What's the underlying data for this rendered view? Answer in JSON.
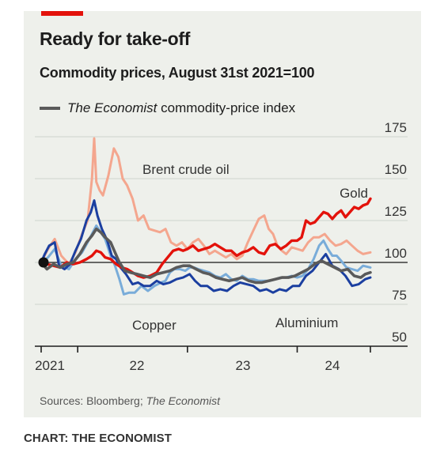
{
  "chart_data": {
    "type": "line",
    "title": "Ready for take-off",
    "subtitle": "Commodity prices, August 31st 2021=100",
    "source_prefix": "Sources: Bloomberg; ",
    "source_italic": "The Economist",
    "credit": "CHART: THE ECONOMIST",
    "legend_italic": "The Economist",
    "legend_rest": " commodity-price index",
    "xlim": [
      2021.667,
      2024.667
    ],
    "ylim": [
      50,
      175
    ],
    "y_ticks": [
      50,
      75,
      100,
      125,
      150,
      175
    ],
    "x_ticks": [
      2021,
      2022,
      2023,
      2024
    ],
    "x_tick_labels": [
      "2021",
      "22",
      "23",
      "24"
    ],
    "grid": true,
    "base_value": 100,
    "series": [
      {
        "name": "Brent crude oil",
        "color": "#f4a68e",
        "width": 3,
        "points": [
          [
            2021.667,
            100
          ],
          [
            2021.73,
            108
          ],
          [
            2021.79,
            114
          ],
          [
            2021.85,
            104
          ],
          [
            2021.92,
            99
          ],
          [
            2021.98,
            106
          ],
          [
            2022.04,
            117
          ],
          [
            2022.09,
            125
          ],
          [
            2022.13,
            150
          ],
          [
            2022.15,
            174
          ],
          [
            2022.17,
            148
          ],
          [
            2022.2,
            143
          ],
          [
            2022.23,
            140
          ],
          [
            2022.28,
            152
          ],
          [
            2022.33,
            168
          ],
          [
            2022.37,
            163
          ],
          [
            2022.41,
            150
          ],
          [
            2022.45,
            146
          ],
          [
            2022.5,
            138
          ],
          [
            2022.55,
            125
          ],
          [
            2022.6,
            128
          ],
          [
            2022.65,
            120
          ],
          [
            2022.7,
            119
          ],
          [
            2022.75,
            118
          ],
          [
            2022.8,
            120
          ],
          [
            2022.85,
            112
          ],
          [
            2022.9,
            110
          ],
          [
            2022.95,
            112
          ],
          [
            2023.0,
            108
          ],
          [
            2023.05,
            112
          ],
          [
            2023.1,
            114
          ],
          [
            2023.15,
            110
          ],
          [
            2023.2,
            105
          ],
          [
            2023.25,
            107
          ],
          [
            2023.3,
            105
          ],
          [
            2023.35,
            103
          ],
          [
            2023.4,
            105
          ],
          [
            2023.45,
            102
          ],
          [
            2023.5,
            104
          ],
          [
            2023.55,
            112
          ],
          [
            2023.6,
            119
          ],
          [
            2023.65,
            126
          ],
          [
            2023.7,
            128
          ],
          [
            2023.74,
            120
          ],
          [
            2023.78,
            117
          ],
          [
            2023.82,
            110
          ],
          [
            2023.86,
            107
          ],
          [
            2023.9,
            105
          ],
          [
            2023.95,
            109
          ],
          [
            2024.0,
            108
          ],
          [
            2024.05,
            107
          ],
          [
            2024.1,
            112
          ],
          [
            2024.15,
            115
          ],
          [
            2024.2,
            115
          ],
          [
            2024.25,
            117
          ],
          [
            2024.3,
            113
          ],
          [
            2024.35,
            110
          ],
          [
            2024.4,
            111
          ],
          [
            2024.45,
            113
          ],
          [
            2024.5,
            110
          ],
          [
            2024.55,
            107
          ],
          [
            2024.6,
            105
          ],
          [
            2024.667,
            106
          ]
        ]
      },
      {
        "name": "Copper",
        "color": "#79acd9",
        "width": 3,
        "points": [
          [
            2021.667,
            100
          ],
          [
            2021.73,
            103
          ],
          [
            2021.79,
            108
          ],
          [
            2021.85,
            98
          ],
          [
            2021.92,
            96
          ],
          [
            2021.98,
            102
          ],
          [
            2022.04,
            106
          ],
          [
            2022.09,
            112
          ],
          [
            2022.13,
            117
          ],
          [
            2022.17,
            122
          ],
          [
            2022.21,
            118
          ],
          [
            2022.25,
            114
          ],
          [
            2022.3,
            104
          ],
          [
            2022.34,
            98
          ],
          [
            2022.38,
            90
          ],
          [
            2022.42,
            81
          ],
          [
            2022.47,
            82
          ],
          [
            2022.52,
            82
          ],
          [
            2022.58,
            86
          ],
          [
            2022.64,
            83
          ],
          [
            2022.7,
            86
          ],
          [
            2022.76,
            88
          ],
          [
            2022.8,
            89
          ],
          [
            2022.84,
            94
          ],
          [
            2022.88,
            96
          ],
          [
            2022.93,
            96
          ],
          [
            2022.98,
            95
          ],
          [
            2023.02,
            97
          ],
          [
            2023.06,
            97
          ],
          [
            2023.1,
            96
          ],
          [
            2023.15,
            95
          ],
          [
            2023.2,
            94
          ],
          [
            2023.25,
            92
          ],
          [
            2023.3,
            91
          ],
          [
            2023.35,
            93
          ],
          [
            2023.4,
            90
          ],
          [
            2023.45,
            89
          ],
          [
            2023.5,
            92
          ],
          [
            2023.55,
            90
          ],
          [
            2023.6,
            90
          ],
          [
            2023.65,
            89
          ],
          [
            2023.7,
            89
          ],
          [
            2023.75,
            89
          ],
          [
            2023.8,
            90
          ],
          [
            2023.85,
            91
          ],
          [
            2023.9,
            91
          ],
          [
            2023.95,
            92
          ],
          [
            2024.0,
            91
          ],
          [
            2024.05,
            92
          ],
          [
            2024.1,
            96
          ],
          [
            2024.15,
            102
          ],
          [
            2024.2,
            110
          ],
          [
            2024.24,
            113
          ],
          [
            2024.28,
            108
          ],
          [
            2024.32,
            104
          ],
          [
            2024.36,
            104
          ],
          [
            2024.4,
            101
          ],
          [
            2024.45,
            97
          ],
          [
            2024.5,
            96
          ],
          [
            2024.55,
            95
          ],
          [
            2024.6,
            98
          ],
          [
            2024.667,
            97
          ]
        ]
      },
      {
        "name": "Aluminium",
        "color": "#1b3fa0",
        "width": 3,
        "points": [
          [
            2021.667,
            100
          ],
          [
            2021.7,
            105
          ],
          [
            2021.74,
            110
          ],
          [
            2021.79,
            112
          ],
          [
            2021.83,
            98
          ],
          [
            2021.88,
            96
          ],
          [
            2021.93,
            99
          ],
          [
            2021.98,
            107
          ],
          [
            2022.03,
            114
          ],
          [
            2022.08,
            125
          ],
          [
            2022.12,
            130
          ],
          [
            2022.15,
            137
          ],
          [
            2022.18,
            128
          ],
          [
            2022.22,
            120
          ],
          [
            2022.27,
            113
          ],
          [
            2022.31,
            104
          ],
          [
            2022.35,
            102
          ],
          [
            2022.39,
            97
          ],
          [
            2022.44,
            93
          ],
          [
            2022.5,
            87
          ],
          [
            2022.55,
            88
          ],
          [
            2022.6,
            86
          ],
          [
            2022.66,
            86
          ],
          [
            2022.72,
            89
          ],
          [
            2022.78,
            87
          ],
          [
            2022.84,
            88
          ],
          [
            2022.9,
            90
          ],
          [
            2022.96,
            91
          ],
          [
            2023.02,
            93
          ],
          [
            2023.07,
            89
          ],
          [
            2023.12,
            86
          ],
          [
            2023.18,
            86
          ],
          [
            2023.24,
            83
          ],
          [
            2023.3,
            84
          ],
          [
            2023.36,
            83
          ],
          [
            2023.42,
            86
          ],
          [
            2023.48,
            88
          ],
          [
            2023.54,
            87
          ],
          [
            2023.6,
            86
          ],
          [
            2023.66,
            83
          ],
          [
            2023.72,
            84
          ],
          [
            2023.78,
            82
          ],
          [
            2023.84,
            84
          ],
          [
            2023.9,
            83
          ],
          [
            2023.96,
            86
          ],
          [
            2024.02,
            86
          ],
          [
            2024.08,
            92
          ],
          [
            2024.14,
            95
          ],
          [
            2024.2,
            100
          ],
          [
            2024.26,
            105
          ],
          [
            2024.32,
            98
          ],
          [
            2024.38,
            96
          ],
          [
            2024.44,
            92
          ],
          [
            2024.5,
            86
          ],
          [
            2024.56,
            87
          ],
          [
            2024.62,
            90
          ],
          [
            2024.667,
            91
          ]
        ]
      },
      {
        "name": "Gold",
        "color": "#e3120b",
        "width": 3.4,
        "points": [
          [
            2021.667,
            100
          ],
          [
            2021.72,
            99
          ],
          [
            2021.78,
            98
          ],
          [
            2021.84,
            97
          ],
          [
            2021.9,
            100
          ],
          [
            2021.96,
            99
          ],
          [
            2022.02,
            100
          ],
          [
            2022.08,
            102
          ],
          [
            2022.13,
            104
          ],
          [
            2022.17,
            107
          ],
          [
            2022.21,
            106
          ],
          [
            2022.25,
            103
          ],
          [
            2022.3,
            102
          ],
          [
            2022.35,
            99
          ],
          [
            2022.4,
            97
          ],
          [
            2022.45,
            96
          ],
          [
            2022.5,
            94
          ],
          [
            2022.55,
            92
          ],
          [
            2022.6,
            91
          ],
          [
            2022.66,
            92
          ],
          [
            2022.72,
            94
          ],
          [
            2022.77,
            99
          ],
          [
            2022.82,
            103
          ],
          [
            2022.87,
            107
          ],
          [
            2022.92,
            108
          ],
          [
            2022.96,
            107
          ],
          [
            2023.0,
            108
          ],
          [
            2023.05,
            110
          ],
          [
            2023.1,
            107
          ],
          [
            2023.15,
            108
          ],
          [
            2023.2,
            109
          ],
          [
            2023.25,
            111
          ],
          [
            2023.3,
            109
          ],
          [
            2023.35,
            107
          ],
          [
            2023.4,
            107
          ],
          [
            2023.45,
            104
          ],
          [
            2023.5,
            106
          ],
          [
            2023.55,
            107
          ],
          [
            2023.6,
            109
          ],
          [
            2023.65,
            106
          ],
          [
            2023.7,
            105
          ],
          [
            2023.75,
            110
          ],
          [
            2023.8,
            111
          ],
          [
            2023.85,
            108
          ],
          [
            2023.9,
            110
          ],
          [
            2023.95,
            113
          ],
          [
            2024.0,
            113
          ],
          [
            2024.04,
            115
          ],
          [
            2024.08,
            125
          ],
          [
            2024.12,
            123
          ],
          [
            2024.16,
            124
          ],
          [
            2024.2,
            127
          ],
          [
            2024.24,
            130
          ],
          [
            2024.28,
            129
          ],
          [
            2024.32,
            126
          ],
          [
            2024.36,
            129
          ],
          [
            2024.4,
            131
          ],
          [
            2024.44,
            127
          ],
          [
            2024.48,
            130
          ],
          [
            2024.52,
            133
          ],
          [
            2024.56,
            132
          ],
          [
            2024.6,
            134
          ],
          [
            2024.64,
            135
          ],
          [
            2024.667,
            138
          ]
        ]
      },
      {
        "name": "The Economist commodity-price index",
        "color": "#5a5a5a",
        "width": 3.6,
        "points": [
          [
            2021.667,
            100
          ],
          [
            2021.72,
            96
          ],
          [
            2021.78,
            99
          ],
          [
            2021.84,
            97
          ],
          [
            2021.9,
            99
          ],
          [
            2021.96,
            100
          ],
          [
            2022.02,
            105
          ],
          [
            2022.08,
            112
          ],
          [
            2022.13,
            116
          ],
          [
            2022.17,
            120
          ],
          [
            2022.21,
            118
          ],
          [
            2022.25,
            115
          ],
          [
            2022.3,
            112
          ],
          [
            2022.34,
            106
          ],
          [
            2022.38,
            100
          ],
          [
            2022.43,
            95
          ],
          [
            2022.48,
            94
          ],
          [
            2022.54,
            93
          ],
          [
            2022.6,
            92
          ],
          [
            2022.66,
            91
          ],
          [
            2022.72,
            93
          ],
          [
            2022.78,
            94
          ],
          [
            2022.84,
            95
          ],
          [
            2022.9,
            97
          ],
          [
            2022.96,
            98
          ],
          [
            2023.02,
            98
          ],
          [
            2023.08,
            96
          ],
          [
            2023.14,
            94
          ],
          [
            2023.2,
            93
          ],
          [
            2023.26,
            91
          ],
          [
            2023.32,
            90
          ],
          [
            2023.38,
            89
          ],
          [
            2023.44,
            90
          ],
          [
            2023.5,
            91
          ],
          [
            2023.56,
            89
          ],
          [
            2023.62,
            88
          ],
          [
            2023.68,
            88
          ],
          [
            2023.74,
            89
          ],
          [
            2023.8,
            90
          ],
          [
            2023.86,
            91
          ],
          [
            2023.92,
            91
          ],
          [
            2023.98,
            92
          ],
          [
            2024.04,
            94
          ],
          [
            2024.1,
            96
          ],
          [
            2024.16,
            99
          ],
          [
            2024.22,
            101
          ],
          [
            2024.28,
            99
          ],
          [
            2024.34,
            97
          ],
          [
            2024.4,
            95
          ],
          [
            2024.46,
            96
          ],
          [
            2024.52,
            92
          ],
          [
            2024.58,
            91
          ],
          [
            2024.62,
            93
          ],
          [
            2024.667,
            94
          ]
        ]
      }
    ],
    "annotations": [
      "Brent crude oil",
      "Gold",
      "Copper",
      "Aluminium"
    ]
  }
}
